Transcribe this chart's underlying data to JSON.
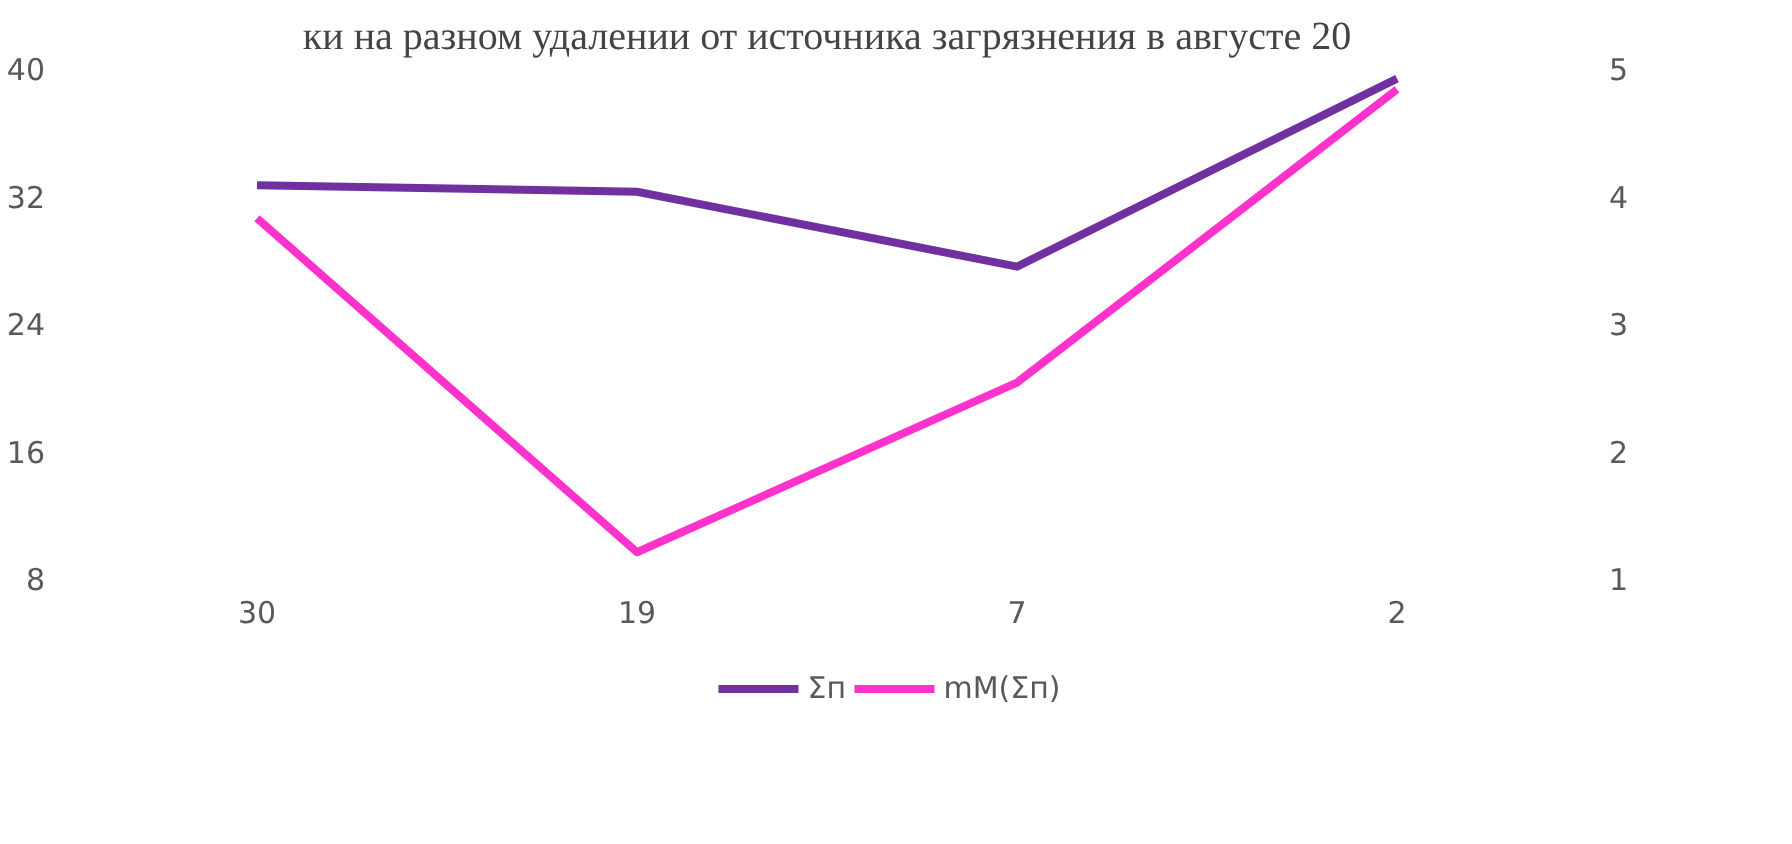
{
  "chart_data": {
    "type": "line",
    "title": "ки на разном удалении от источника загрязнения в августе 20",
    "categories": [
      "30",
      "19",
      "7",
      "2"
    ],
    "series": [
      {
        "name": "Σп",
        "color": "#7030a0",
        "values": [
          32.7,
          32.3,
          27.6,
          39.4
        ]
      },
      {
        "name": "mM(Σп)",
        "color": "#ff33cc",
        "values": [
          3.83,
          1.21,
          2.54,
          4.84
        ],
        "axis": "y2"
      }
    ],
    "ylim": [
      8,
      40
    ],
    "yticks": [
      8,
      16,
      24,
      32,
      40
    ],
    "y2lim": [
      1,
      5
    ],
    "y2ticks": [
      1,
      2,
      3,
      4,
      5
    ],
    "grid": false,
    "legend": "bottom",
    "marker": "none",
    "line_style": "solid"
  }
}
